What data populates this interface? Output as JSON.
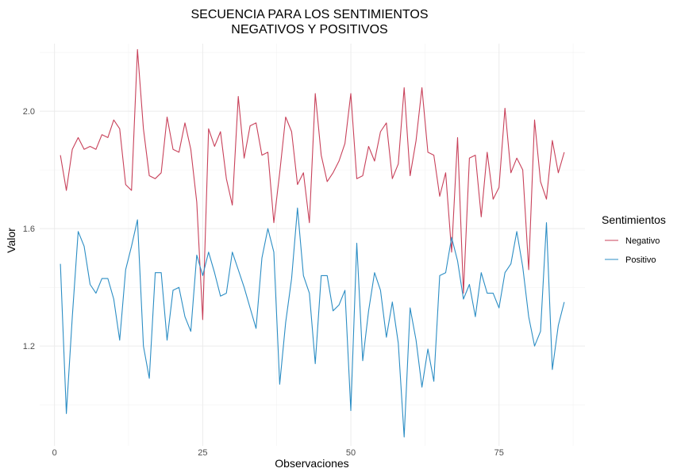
{
  "chart_data": {
    "type": "line",
    "title_line1": "SECUENCIA PARA LOS SENTIMIENTOS",
    "title_line2": "NEGATIVOS Y POSITIVOS",
    "xlabel": "Observaciones",
    "ylabel": "Valor",
    "xlim": [
      -2.5,
      89.5
    ],
    "ylim": [
      0.86,
      2.23
    ],
    "x_ticks": [
      0,
      25,
      50,
      75
    ],
    "x_tick_labels": [
      "0",
      "25",
      "50",
      "75"
    ],
    "y_ticks": [
      1.2,
      1.6,
      2.0
    ],
    "y_tick_labels": [
      "1.2",
      "1.6",
      "2.0"
    ],
    "grid": true,
    "legend": {
      "title": "Sentimientos",
      "placement": "right"
    },
    "x": [
      1,
      2,
      3,
      4,
      5,
      6,
      7,
      8,
      9,
      10,
      11,
      12,
      13,
      14,
      15,
      16,
      17,
      18,
      19,
      20,
      21,
      22,
      23,
      24,
      25,
      26,
      27,
      28,
      29,
      30,
      31,
      32,
      33,
      34,
      35,
      36,
      37,
      38,
      39,
      40,
      41,
      42,
      43,
      44,
      45,
      46,
      47,
      48,
      49,
      50,
      51,
      52,
      53,
      54,
      55,
      56,
      57,
      58,
      59,
      60,
      61,
      62,
      63,
      64,
      65,
      66,
      67,
      68,
      69,
      70,
      71,
      72,
      73,
      74,
      75,
      76,
      77,
      78,
      79,
      80,
      81,
      82,
      83,
      84,
      85,
      86
    ],
    "series": [
      {
        "name": "Negativo",
        "color": "#c8415a",
        "values": [
          1.85,
          1.73,
          1.87,
          1.91,
          1.87,
          1.88,
          1.87,
          1.92,
          1.91,
          1.97,
          1.94,
          1.75,
          1.73,
          2.21,
          1.94,
          1.78,
          1.77,
          1.79,
          1.98,
          1.87,
          1.86,
          1.96,
          1.87,
          1.69,
          1.29,
          1.94,
          1.88,
          1.93,
          1.77,
          1.68,
          2.05,
          1.84,
          1.95,
          1.96,
          1.85,
          1.86,
          1.62,
          1.79,
          1.98,
          1.93,
          1.75,
          1.79,
          1.62,
          2.06,
          1.85,
          1.76,
          1.79,
          1.83,
          1.89,
          2.06,
          1.77,
          1.78,
          1.88,
          1.83,
          1.93,
          1.96,
          1.77,
          1.82,
          2.08,
          1.78,
          1.9,
          2.08,
          1.86,
          1.85,
          1.71,
          1.79,
          1.52,
          1.91,
          1.38,
          1.84,
          1.85,
          1.64,
          1.86,
          1.7,
          1.74,
          2.01,
          1.79,
          1.84,
          1.8,
          1.46,
          1.97,
          1.76,
          1.7,
          1.9,
          1.79,
          1.86
        ]
      },
      {
        "name": "Positivo",
        "color": "#2b8dc4",
        "values": [
          1.48,
          0.97,
          1.3,
          1.59,
          1.54,
          1.41,
          1.38,
          1.43,
          1.43,
          1.36,
          1.22,
          1.46,
          1.54,
          1.63,
          1.2,
          1.09,
          1.45,
          1.45,
          1.22,
          1.39,
          1.4,
          1.3,
          1.25,
          1.51,
          1.44,
          1.52,
          1.45,
          1.37,
          1.38,
          1.52,
          1.46,
          1.4,
          1.33,
          1.26,
          1.5,
          1.6,
          1.52,
          1.07,
          1.28,
          1.43,
          1.67,
          1.44,
          1.38,
          1.14,
          1.44,
          1.44,
          1.32,
          1.34,
          1.39,
          0.98,
          1.55,
          1.15,
          1.32,
          1.45,
          1.39,
          1.23,
          1.35,
          1.21,
          0.89,
          1.33,
          1.22,
          1.06,
          1.19,
          1.08,
          1.44,
          1.45,
          1.57,
          1.49,
          1.36,
          1.41,
          1.3,
          1.45,
          1.38,
          1.38,
          1.33,
          1.45,
          1.48,
          1.59,
          1.47,
          1.3,
          1.2,
          1.25,
          1.62,
          1.12,
          1.27,
          1.35
        ]
      }
    ]
  }
}
